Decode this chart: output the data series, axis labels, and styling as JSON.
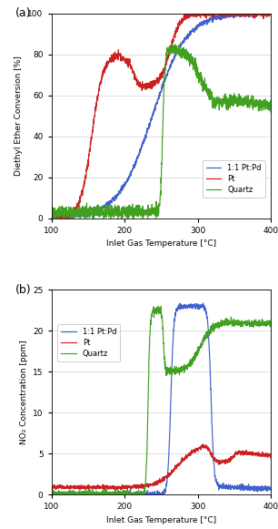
{
  "title_a": "(a)",
  "title_b": "(b)",
  "xlabel": "Inlet Gas Temperature [°C]",
  "ylabel_a": "Diethyl Ether Conversion [%]",
  "ylabel_b": "NO₂ Concentration [ppm]",
  "xlim": [
    100,
    400
  ],
  "ylim_a": [
    0,
    100
  ],
  "ylim_b": [
    0,
    25
  ],
  "xticks": [
    100,
    200,
    300,
    400
  ],
  "yticks_a": [
    0,
    20,
    40,
    60,
    80,
    100
  ],
  "yticks_b": [
    0,
    5,
    10,
    15,
    20,
    25
  ],
  "color_ptpd": "#4060cc",
  "color_pt": "#cc2020",
  "color_quartz": "#40a020",
  "legend_labels": [
    "1:1 Pt:Pd",
    "Pt",
    "Quartz"
  ],
  "background_color": "#ffffff",
  "noise_seed": 42,
  "figsize": [
    3.06,
    5.81
  ],
  "dpi": 100
}
